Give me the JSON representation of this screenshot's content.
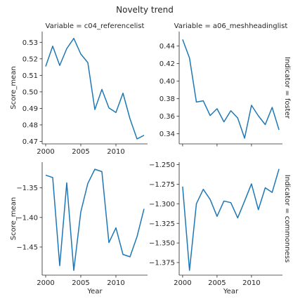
{
  "title": "Novelty trend",
  "row_var": "Indicator",
  "col_var": "Variable",
  "ylabel": "Score_mean",
  "xlabel": "Year",
  "line_color": "#1f77b4",
  "chart_data": [
    {
      "type": "line",
      "panel": "top-left",
      "col_title": "Variable = c04_referencelist",
      "row_title": "",
      "ylabel": "Score_mean",
      "xlabel": "",
      "xlim": [
        1999.5,
        2014.5
      ],
      "ylim": [
        0.4685,
        0.5365
      ],
      "xticks": [
        2000,
        2005,
        2010
      ],
      "xtick_labels": [
        "2000",
        "2005",
        "2010"
      ],
      "yticks": [
        0.47,
        0.48,
        0.49,
        0.5,
        0.51,
        0.52,
        0.53
      ],
      "ytick_labels": [
        "0.47",
        "0.48",
        "0.49",
        "0.50",
        "0.51",
        "0.52",
        "0.53"
      ],
      "show_xtick_labels": true,
      "x": [
        2000,
        2001,
        2002,
        2003,
        2004,
        2005,
        2006,
        2007,
        2008,
        2009,
        2010,
        2011,
        2012,
        2013,
        2014
      ],
      "y": [
        0.5154,
        0.5277,
        0.516,
        0.5262,
        0.5324,
        0.5229,
        0.5177,
        0.4893,
        0.5015,
        0.4903,
        0.4875,
        0.4992,
        0.4837,
        0.4715,
        0.4737
      ]
    },
    {
      "type": "line",
      "panel": "top-right",
      "col_title": "Variable = a06_meshheadinglist",
      "row_title": "Indicator = foster",
      "ylabel": "",
      "xlabel": "",
      "xlim": [
        1999.5,
        2014.5
      ],
      "ylim": [
        0.3285,
        0.4565
      ],
      "xticks": [
        2000,
        2005,
        2010
      ],
      "xtick_labels": [
        "2000",
        "2005",
        "2010"
      ],
      "yticks": [
        0.34,
        0.36,
        0.38,
        0.4,
        0.42,
        0.44
      ],
      "ytick_labels": [
        "0.34",
        "0.36",
        "0.38",
        "0.40",
        "0.42",
        "0.44"
      ],
      "show_xtick_labels": false,
      "x": [
        2000,
        2001,
        2002,
        2003,
        2004,
        2005,
        2006,
        2007,
        2008,
        2009,
        2010,
        2011,
        2012,
        2013,
        2014
      ],
      "y": [
        0.4475,
        0.4264,
        0.3762,
        0.3776,
        0.3608,
        0.3686,
        0.3536,
        0.3663,
        0.358,
        0.335,
        0.3725,
        0.3605,
        0.3505,
        0.3701,
        0.3445
      ]
    },
    {
      "type": "line",
      "panel": "bottom-left",
      "col_title": "",
      "row_title": "",
      "ylabel": "Score_mean",
      "xlabel": "Year",
      "xlim": [
        1999.5,
        2014.5
      ],
      "ylim": [
        -1.4975,
        -1.3065
      ],
      "xticks": [
        2000,
        2005,
        2010
      ],
      "xtick_labels": [
        "2000",
        "2005",
        "2010"
      ],
      "yticks": [
        -1.45,
        -1.4,
        -1.35
      ],
      "ytick_labels": [
        "−1.45",
        "−1.40",
        "−1.35"
      ],
      "show_xtick_labels": true,
      "x": [
        2000,
        2001,
        2002,
        2003,
        2004,
        2005,
        2006,
        2007,
        2008,
        2009,
        2010,
        2011,
        2012,
        2013,
        2014
      ],
      "y": [
        -1.3285,
        -1.3325,
        -1.4815,
        -1.3415,
        -1.4895,
        -1.3905,
        -1.3425,
        -1.3185,
        -1.3225,
        -1.4425,
        -1.4175,
        -1.4625,
        -1.4665,
        -1.4325,
        -1.3855
      ]
    },
    {
      "type": "line",
      "panel": "bottom-right",
      "col_title": "",
      "row_title": "Indicator = commonness",
      "ylabel": "",
      "xlabel": "Year",
      "xlim": [
        1999.5,
        2014.5
      ],
      "ylim": [
        -1.3911,
        -1.2468
      ],
      "xticks": [
        2000,
        2005,
        2010
      ],
      "xtick_labels": [
        "2000",
        "2005",
        "2010"
      ],
      "yticks": [
        -1.375,
        -1.35,
        -1.325,
        -1.3,
        -1.275,
        -1.25
      ],
      "ytick_labels": [
        "−1.375",
        "−1.350",
        "−1.325",
        "−1.300",
        "−1.275",
        "−1.250"
      ],
      "show_xtick_labels": true,
      "x": [
        2000,
        2001,
        2002,
        2003,
        2004,
        2005,
        2006,
        2007,
        2008,
        2009,
        2010,
        2011,
        2012,
        2013,
        2014
      ],
      "y": [
        -1.278,
        -1.385,
        -1.3,
        -1.2815,
        -1.2945,
        -1.316,
        -1.2965,
        -1.2985,
        -1.318,
        -1.2965,
        -1.2745,
        -1.3075,
        -1.2795,
        -1.2855,
        -1.2555
      ]
    }
  ]
}
